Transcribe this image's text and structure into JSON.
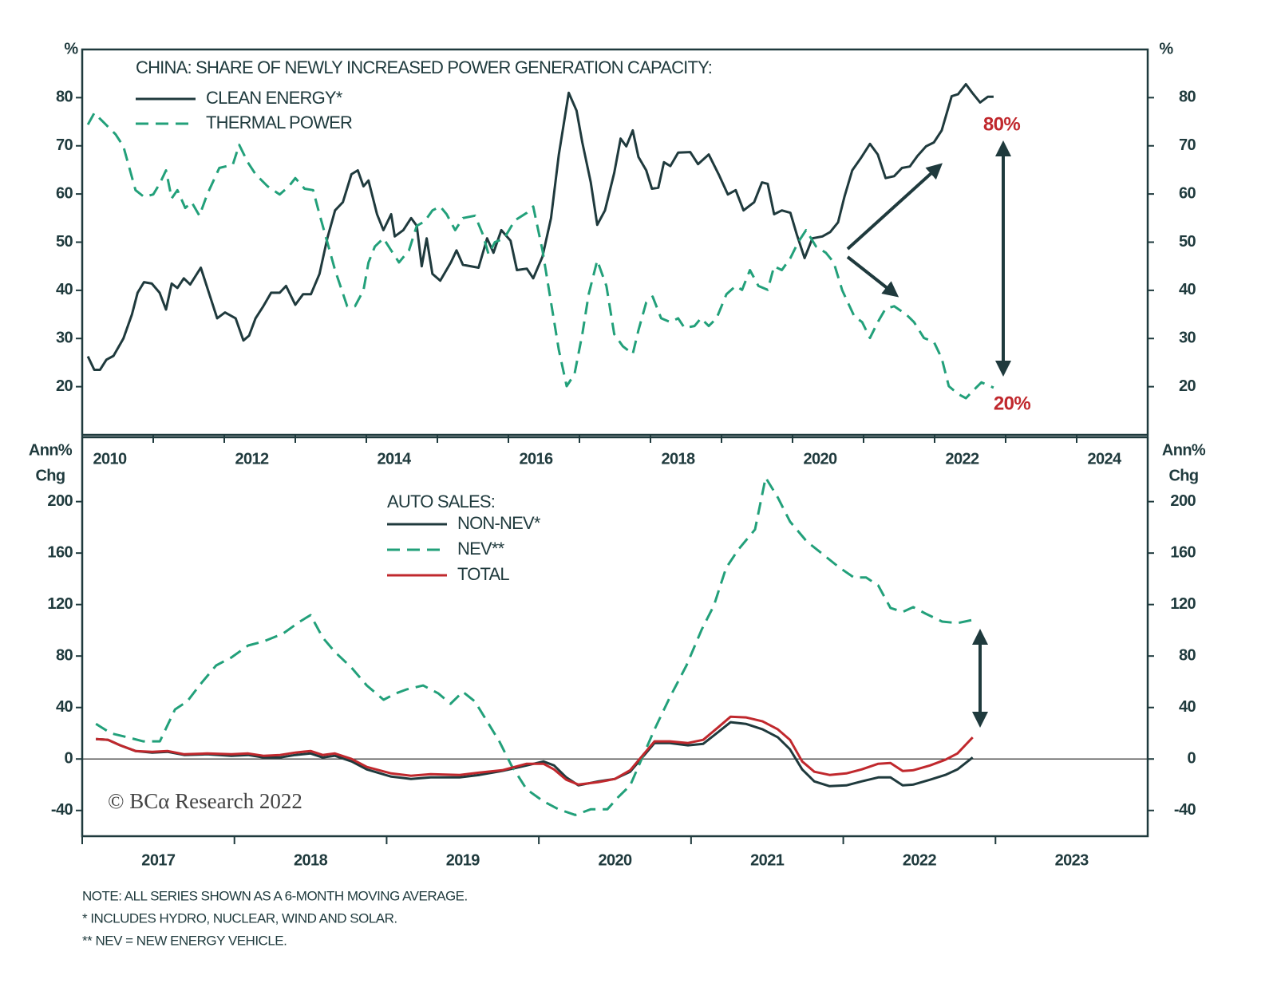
{
  "chart_data": [
    {
      "type": "line",
      "title": "CHINA: SHARE OF NEWLY INCREASED POWER GENERATION CAPACITY:",
      "ylabel": [
        "%"
      ],
      "xlim": [
        2010,
        2025
      ],
      "ylim": [
        10,
        90
      ],
      "xticks": [
        2010,
        2012,
        2014,
        2016,
        2018,
        2020,
        2022,
        2024
      ],
      "yticks": [
        20,
        30,
        40,
        50,
        60,
        70,
        80
      ],
      "annotations": [
        "80%",
        "20%"
      ],
      "series": [
        {
          "name": "CLEAN ENERGY*",
          "color": "#1f3a3d",
          "dash": false,
          "x": [
            2010.08,
            2010.17,
            2010.25,
            2010.34,
            2010.44,
            2010.58,
            2010.7,
            2010.78,
            2010.87,
            2010.98,
            2011.09,
            2011.18,
            2011.26,
            2011.34,
            2011.43,
            2011.52,
            2011.67,
            2011.79,
            2011.9,
            2012.01,
            2012.16,
            2012.27,
            2012.35,
            2012.44,
            2012.55,
            2012.66,
            2012.78,
            2012.87,
            2013.0,
            2013.11,
            2013.22,
            2013.34,
            2013.45,
            2013.56,
            2013.67,
            2013.79,
            2013.88,
            2013.96,
            2014.03,
            2014.15,
            2014.24,
            2014.35,
            2014.4,
            2014.52,
            2014.63,
            2014.71,
            2014.78,
            2014.85,
            2014.93,
            2015.04,
            2015.19,
            2015.27,
            2015.36,
            2015.58,
            2015.7,
            2015.79,
            2015.9,
            2016.03,
            2016.12,
            2016.26,
            2016.35,
            2016.48,
            2016.6,
            2016.71,
            2016.85,
            2016.96,
            2017.04,
            2017.16,
            2017.25,
            2017.36,
            2017.49,
            2017.58,
            2017.66,
            2017.75,
            2017.83,
            2017.94,
            2018.02,
            2018.11,
            2018.19,
            2018.28,
            2018.39,
            2018.56,
            2018.67,
            2018.82,
            2018.96,
            2019.09,
            2019.2,
            2019.31,
            2019.46,
            2019.57,
            2019.65,
            2019.74,
            2019.85,
            2019.97,
            2020.06,
            2020.17,
            2020.28,
            2020.42,
            2020.53,
            2020.64,
            2020.73,
            2020.84,
            2020.96,
            2021.09,
            2021.2,
            2021.31,
            2021.43,
            2021.54,
            2021.65,
            2021.76,
            2021.88,
            2021.99,
            2022.1,
            2022.24,
            2022.33,
            2022.44,
            2022.53,
            2022.64,
            2022.75,
            2022.83
          ],
          "values": [
            26.3,
            23.5,
            23.5,
            25.6,
            26.4,
            30,
            35,
            39.5,
            41.7,
            41.4,
            39.5,
            36,
            41.4,
            40.5,
            42.5,
            41.2,
            44.7,
            39.2,
            34.2,
            35.4,
            34.2,
            29.6,
            30.6,
            34.2,
            36.7,
            39.5,
            39.5,
            40.9,
            37,
            39.2,
            39.2,
            43.4,
            50.8,
            56.6,
            58.3,
            64.1,
            64.9,
            61.6,
            62.8,
            55.8,
            52.5,
            55.8,
            51.2,
            52.5,
            55,
            53.4,
            45,
            50.8,
            43.4,
            42,
            45.8,
            48.3,
            45.3,
            44.7,
            50.8,
            47.8,
            52.5,
            50.3,
            44.2,
            44.5,
            42.5,
            47,
            55,
            68.2,
            81,
            77.3,
            70.7,
            62.4,
            53.6,
            56.6,
            64.4,
            71.5,
            69.9,
            73.2,
            67.7,
            64.9,
            61.1,
            61.3,
            66.6,
            65.8,
            68.6,
            68.7,
            66.2,
            68.2,
            64.1,
            59.9,
            60.8,
            56.6,
            58.3,
            62.4,
            62.1,
            55.8,
            56.6,
            56.1,
            51.6,
            46.7,
            50.8,
            51.2,
            52.1,
            54.1,
            59.4,
            64.9,
            67.4,
            70.4,
            68.2,
            63.3,
            63.7,
            65.4,
            65.7,
            67.9,
            69.9,
            70.7,
            73.2,
            80.3,
            80.7,
            82.8,
            81,
            79,
            80.2,
            80.2
          ]
        },
        {
          "name": "THERMAL POWER",
          "color": "#22a07a",
          "dash": true,
          "x": [
            2010.08,
            2010.17,
            2010.3,
            2010.47,
            2010.58,
            2010.75,
            2010.87,
            2011.0,
            2011.09,
            2011.18,
            2011.26,
            2011.34,
            2011.45,
            2011.54,
            2011.65,
            2011.76,
            2011.93,
            2012.12,
            2012.21,
            2012.33,
            2012.44,
            2012.61,
            2012.78,
            2012.91,
            2013.0,
            2013.13,
            2013.25,
            2013.34,
            2013.45,
            2013.56,
            2013.73,
            2013.84,
            2013.96,
            2014.03,
            2014.12,
            2014.24,
            2014.35,
            2014.46,
            2014.6,
            2014.71,
            2014.82,
            2014.93,
            2015.04,
            2015.13,
            2015.25,
            2015.36,
            2015.53,
            2015.64,
            2015.72,
            2015.81,
            2015.94,
            2016.09,
            2016.26,
            2016.35,
            2016.48,
            2016.6,
            2016.71,
            2016.82,
            2016.93,
            2017.04,
            2017.13,
            2017.25,
            2017.38,
            2017.49,
            2017.61,
            2017.75,
            2017.83,
            2017.94,
            2018.03,
            2018.15,
            2018.28,
            2018.39,
            2018.48,
            2018.62,
            2018.71,
            2018.82,
            2018.93,
            2019.07,
            2019.2,
            2019.29,
            2019.4,
            2019.52,
            2019.65,
            2019.74,
            2019.85,
            2019.97,
            2020.08,
            2020.19,
            2020.33,
            2020.47,
            2020.58,
            2020.7,
            2020.87,
            2020.98,
            2021.09,
            2021.2,
            2021.31,
            2021.43,
            2021.6,
            2021.71,
            2021.85,
            2021.99,
            2022.1,
            2022.2,
            2022.33,
            2022.44,
            2022.55,
            2022.66,
            2022.78,
            2022.83
          ],
          "values": [
            74.4,
            76.8,
            74.9,
            72.4,
            69.9,
            60.8,
            59.4,
            59.9,
            62.1,
            64.9,
            59.1,
            60.8,
            57.1,
            58.3,
            55.5,
            59.9,
            65.4,
            66.1,
            70.2,
            66.6,
            64.1,
            61.6,
            59.9,
            61.6,
            63.3,
            61.1,
            60.8,
            55.8,
            50,
            44.2,
            36.7,
            36.7,
            40,
            45.8,
            49.1,
            50.8,
            48.3,
            45.8,
            48.3,
            53.4,
            54.3,
            56.6,
            57.4,
            55.8,
            52.5,
            55,
            55.5,
            51.6,
            47.5,
            50,
            50.8,
            54.5,
            56.1,
            57.4,
            48.3,
            37.5,
            27.6,
            20.1,
            22.6,
            30.9,
            39.2,
            46.2,
            40.9,
            30.9,
            28.4,
            26.8,
            31.7,
            37.5,
            38.7,
            34.2,
            33.4,
            34.2,
            32.2,
            32.6,
            34.2,
            32.6,
            34.2,
            39.2,
            40.9,
            40.1,
            44.2,
            40.9,
            40.1,
            45,
            44.2,
            46.7,
            50,
            52.5,
            49.1,
            47.8,
            45.8,
            40,
            34.6,
            33.4,
            30.1,
            33.4,
            36.2,
            36.7,
            35,
            33.4,
            30.1,
            29.3,
            25.9,
            20.1,
            18.5,
            17.6,
            19.3,
            20.9,
            20.1,
            19.8
          ]
        }
      ]
    },
    {
      "type": "line",
      "title": "AUTO SALES:",
      "ylabel": [
        "Ann%",
        "Chg"
      ],
      "xlim": [
        2017,
        2024
      ],
      "ylim": [
        -60,
        250
      ],
      "xticks": [
        2017,
        2018,
        2019,
        2020,
        2021,
        2022,
        2023
      ],
      "yticks": [
        -40,
        0,
        40,
        80,
        120,
        160,
        200
      ],
      "source": "© BCα Research 2022",
      "series": [
        {
          "name": "NON-NEV*",
          "color": "#1f3a3d",
          "dash": false,
          "x": [
            2017.09,
            2017.17,
            2017.25,
            2017.35,
            2017.46,
            2017.56,
            2017.67,
            2017.82,
            2017.98,
            2018.09,
            2018.19,
            2018.3,
            2018.4,
            2018.5,
            2018.58,
            2018.66,
            2018.77,
            2018.87,
            2019.03,
            2019.16,
            2019.29,
            2019.48,
            2019.61,
            2019.76,
            2019.92,
            2020.03,
            2020.1,
            2020.18,
            2020.26,
            2020.39,
            2020.5,
            2020.6,
            2020.68,
            2020.76,
            2020.86,
            2020.98,
            2021.08,
            2021.18,
            2021.26,
            2021.36,
            2021.47,
            2021.57,
            2021.65,
            2021.73,
            2021.81,
            2021.91,
            2022.02,
            2022.12,
            2022.23,
            2022.31,
            2022.39,
            2022.46,
            2022.57,
            2022.67,
            2022.75,
            2022.85
          ],
          "values": [
            15.5,
            14.9,
            10.6,
            6.2,
            5,
            5.6,
            3.1,
            3.7,
            2.5,
            3.1,
            1.2,
            1.2,
            3.1,
            4.3,
            1.2,
            2.5,
            -1.9,
            -8.1,
            -13.7,
            -15.5,
            -14.3,
            -14.3,
            -12.4,
            -9.3,
            -5,
            -1.9,
            -5,
            -14.3,
            -20.5,
            -17.4,
            -15.5,
            -9.9,
            1.2,
            12.4,
            12.4,
            10.6,
            11.8,
            21.1,
            28.6,
            27.3,
            23,
            16.8,
            7.5,
            -8.1,
            -17.4,
            -21.1,
            -20.5,
            -17.4,
            -14.3,
            -14.3,
            -20.5,
            -19.9,
            -16.1,
            -12.4,
            -8.1,
            1.2
          ]
        },
        {
          "name": "NEV**",
          "color": "#22a07a",
          "dash": true,
          "x": [
            2017.09,
            2017.19,
            2017.3,
            2017.4,
            2017.51,
            2017.61,
            2017.69,
            2017.77,
            2017.88,
            2017.98,
            2018.09,
            2018.19,
            2018.32,
            2018.43,
            2018.5,
            2018.58,
            2018.66,
            2018.77,
            2018.87,
            2018.98,
            2019.06,
            2019.13,
            2019.24,
            2019.34,
            2019.42,
            2019.5,
            2019.58,
            2019.66,
            2019.74,
            2019.82,
            2019.92,
            2020.03,
            2020.13,
            2020.24,
            2020.34,
            2020.45,
            2020.52,
            2020.6,
            2020.68,
            2020.76,
            2020.86,
            2020.97,
            2021.07,
            2021.15,
            2021.23,
            2021.31,
            2021.42,
            2021.49,
            2021.57,
            2021.65,
            2021.76,
            2021.86,
            2021.97,
            2022.07,
            2022.15,
            2022.23,
            2022.31,
            2022.39,
            2022.46,
            2022.54,
            2022.65,
            2022.75,
            2022.85
          ],
          "values": [
            27.3,
            19.9,
            16.8,
            13.7,
            13.7,
            38.5,
            44.7,
            57.1,
            72.7,
            78.9,
            88.2,
            91.3,
            97.5,
            106.8,
            111.8,
            94.4,
            83.2,
            70.8,
            57.1,
            46,
            50.9,
            54,
            57.1,
            50.9,
            42.9,
            52.2,
            44.7,
            29.2,
            13.7,
            -5,
            -23.6,
            -32.9,
            -39.1,
            -43.5,
            -39.1,
            -39.1,
            -29.8,
            -20.5,
            1.2,
            23,
            47.8,
            72.7,
            100.6,
            119.3,
            148.4,
            162.7,
            178.3,
            218.6,
            203.1,
            184.5,
            169,
            159.6,
            149.1,
            141,
            141,
            134.8,
            117.4,
            114.3,
            118,
            113,
            106.8,
            105.6,
            108.1
          ]
        },
        {
          "name": "TOTAL",
          "color": "#c0282d",
          "dash": false,
          "x": [
            2017.09,
            2017.17,
            2017.25,
            2017.35,
            2017.46,
            2017.56,
            2017.67,
            2017.82,
            2017.98,
            2018.09,
            2018.19,
            2018.3,
            2018.4,
            2018.5,
            2018.58,
            2018.66,
            2018.77,
            2018.87,
            2019.03,
            2019.16,
            2019.29,
            2019.48,
            2019.61,
            2019.76,
            2019.92,
            2020.03,
            2020.1,
            2020.18,
            2020.26,
            2020.39,
            2020.5,
            2020.6,
            2020.68,
            2020.76,
            2020.86,
            2020.98,
            2021.08,
            2021.18,
            2021.26,
            2021.36,
            2021.47,
            2021.57,
            2021.65,
            2021.73,
            2021.81,
            2021.91,
            2022.02,
            2022.12,
            2022.23,
            2022.31,
            2022.39,
            2022.46,
            2022.57,
            2022.67,
            2022.75,
            2022.85
          ],
          "values": [
            15.5,
            14.9,
            10.6,
            6.2,
            5.6,
            6.2,
            3.7,
            4.3,
            3.7,
            4.3,
            2.5,
            3.1,
            5,
            6.2,
            3.1,
            4.3,
            0,
            -6.2,
            -11.2,
            -13,
            -11.8,
            -12.4,
            -10.6,
            -8.7,
            -3.7,
            -3.7,
            -8.1,
            -16.1,
            -19.9,
            -18,
            -15.5,
            -8.7,
            2.5,
            13.7,
            13.7,
            12.4,
            14.9,
            24.8,
            32.9,
            32.3,
            29.2,
            23,
            14.9,
            -1.9,
            -9.9,
            -12.4,
            -11.2,
            -8.1,
            -3.7,
            -3.1,
            -9.3,
            -8.7,
            -5,
            -0.6,
            4.3,
            16.8
          ]
        }
      ]
    }
  ],
  "notes": [
    "NOTE: ALL SERIES SHOWN AS A 6-MONTH MOVING AVERAGE.",
    "*  INCLUDES HYDRO, NUCLEAR, WIND AND SOLAR.",
    "** NEV = NEW ENERGY VEHICLE."
  ]
}
